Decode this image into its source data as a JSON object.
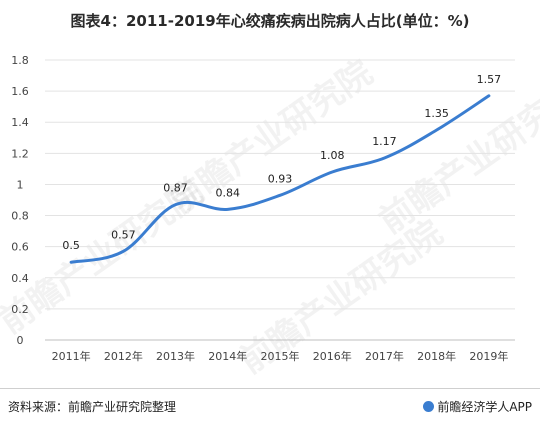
{
  "header": {
    "title": "图表4：2011-2019年心绞痛疾病出院病人占比(单位：%)"
  },
  "watermark_text": "前瞻产业研究院",
  "footer": {
    "source": "资料来源：前瞻产业研究院整理",
    "app": "前瞻经济学人APP"
  },
  "colors": {
    "line": "#3a7dd0",
    "grid": "#e3e3e3",
    "axis": "#bfbfbf"
  },
  "chart_data": {
    "type": "line",
    "title": "图表4：2011-2019年心绞痛疾病出院病人占比(单位：%)",
    "categories": [
      "2011年",
      "2012年",
      "2013年",
      "2014年",
      "2015年",
      "2016年",
      "2017年",
      "2018年",
      "2019年"
    ],
    "series": [
      {
        "values": [
          0.5,
          0.57,
          0.87,
          0.84,
          0.93,
          1.08,
          1.17,
          1.35,
          1.57
        ]
      }
    ],
    "data_labels": [
      "0.5",
      "0.57",
      "0.87",
      "0.84",
      "0.93",
      "1.08",
      "1.17",
      "1.35",
      "1.57"
    ],
    "y_ticks": [
      "0",
      "0.2",
      "0.4",
      "0.6",
      "0.8",
      "1",
      "1.2",
      "1.4",
      "1.6",
      "1.8"
    ],
    "ylim": [
      0,
      1.8
    ],
    "grid": true,
    "legend": "none"
  }
}
